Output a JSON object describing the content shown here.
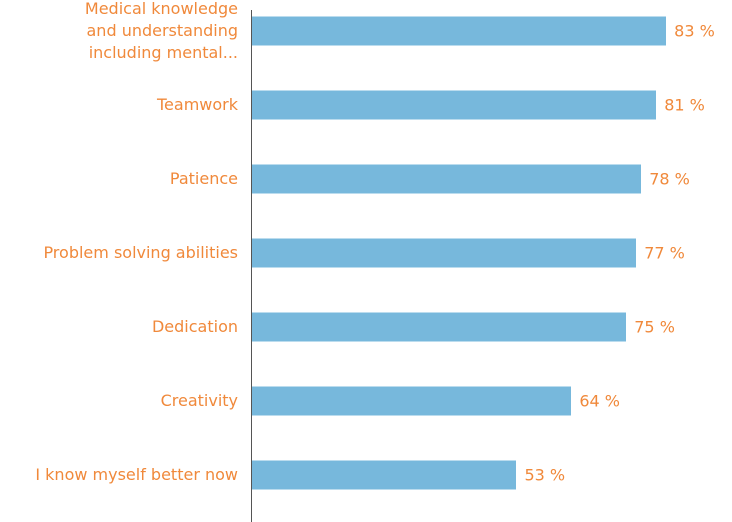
{
  "chart_data": {
    "type": "bar",
    "orientation": "horizontal",
    "categories": [
      "Medical knowledge\nand understanding\nincluding mental...",
      "Teamwork",
      "Patience",
      "Problem solving abilities",
      "Dedication",
      "Creativity",
      "I know myself better now"
    ],
    "values": [
      83,
      81,
      78,
      77,
      75,
      64,
      53
    ],
    "value_labels": [
      "83 %",
      "81 %",
      "78 %",
      "77 %",
      "75 %",
      "64 %",
      "53 %"
    ],
    "color": "#77b8dc",
    "text_color": "#f0893b"
  }
}
